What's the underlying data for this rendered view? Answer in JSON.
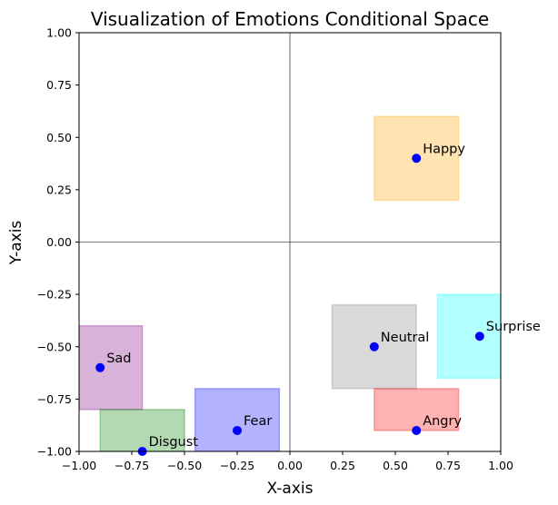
{
  "chart_data": {
    "type": "scatter",
    "title": "Visualization of Emotions Conditional Space",
    "xlabel": "X-axis",
    "ylabel": "Y-axis",
    "xlim": [
      -1.0,
      1.0
    ],
    "ylim": [
      -1.0,
      1.0
    ],
    "xticks": [
      "−1.00",
      "−0.75",
      "−0.50",
      "−0.25",
      "0.00",
      "0.25",
      "0.50",
      "0.75",
      "1.00"
    ],
    "yticks": [
      "−1.00",
      "−0.75",
      "−0.50",
      "−0.25",
      "0.00",
      "0.25",
      "0.50",
      "0.75",
      "1.00"
    ],
    "xtick_values": [
      -1.0,
      -0.75,
      -0.5,
      -0.25,
      0.0,
      0.25,
      0.5,
      0.75,
      1.0
    ],
    "ytick_values": [
      -1.0,
      -0.75,
      -0.5,
      -0.25,
      0.0,
      0.25,
      0.5,
      0.75,
      1.0
    ],
    "grid": false,
    "reference_lines": {
      "x": 0.0,
      "y": 0.0
    },
    "point_color": "#0000ff",
    "regions": [
      {
        "name": "Happy",
        "x": [
          0.4,
          0.8
        ],
        "y": [
          0.2,
          0.6
        ],
        "color": "#ffa500"
      },
      {
        "name": "Sad",
        "x": [
          -1.0,
          -0.7
        ],
        "y": [
          -0.8,
          -0.4
        ],
        "color": "#800080"
      },
      {
        "name": "Disgust",
        "x": [
          -0.9,
          -0.5
        ],
        "y": [
          -1.0,
          -0.8
        ],
        "color": "#008000"
      },
      {
        "name": "Fear",
        "x": [
          -0.45,
          -0.05
        ],
        "y": [
          -1.0,
          -0.7
        ],
        "color": "#0000ff"
      },
      {
        "name": "Neutral",
        "x": [
          0.2,
          0.6
        ],
        "y": [
          -0.7,
          -0.3
        ],
        "color": "#808080"
      },
      {
        "name": "Surprise",
        "x": [
          0.7,
          1.0
        ],
        "y": [
          -0.65,
          -0.25
        ],
        "color": "#00ffff"
      },
      {
        "name": "Angry",
        "x": [
          0.4,
          0.8
        ],
        "y": [
          -0.9,
          -0.7
        ],
        "color": "#ff0000"
      }
    ],
    "points": [
      {
        "label": "Happy",
        "x": 0.6,
        "y": 0.4
      },
      {
        "label": "Sad",
        "x": -0.9,
        "y": -0.6
      },
      {
        "label": "Disgust",
        "x": -0.7,
        "y": -1.0
      },
      {
        "label": "Fear",
        "x": -0.25,
        "y": -0.9
      },
      {
        "label": "Neutral",
        "x": 0.4,
        "y": -0.5
      },
      {
        "label": "Surprise",
        "x": 0.9,
        "y": -0.45
      },
      {
        "label": "Angry",
        "x": 0.6,
        "y": -0.9
      }
    ]
  }
}
